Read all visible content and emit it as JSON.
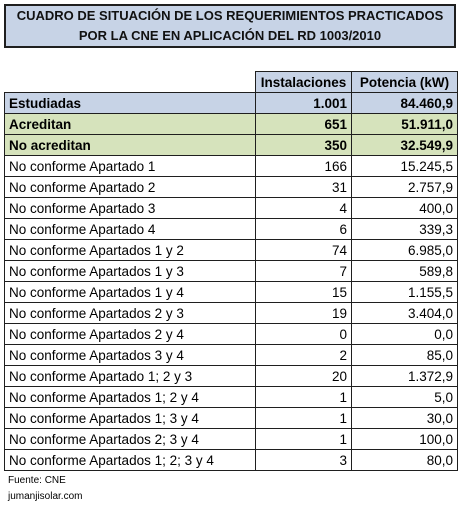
{
  "title": {
    "line1": "CUADRO DE SITUACIÓN DE LOS REQUERIMIENTOS PRACTICADOS",
    "line2": "POR LA CNE EN APLICACIÓN DEL RD 1003/2010"
  },
  "headers": {
    "col2": "Instalaciones",
    "col3": "Potencia (kW)"
  },
  "summary": [
    {
      "label": "Estudiadas",
      "inst": "1.001",
      "pot": "84.460,9"
    },
    {
      "label": "Acreditan",
      "inst": "651",
      "pot": "51.911,0"
    },
    {
      "label": "No acreditan",
      "inst": "350",
      "pot": "32.549,9"
    }
  ],
  "rows": [
    {
      "label": "No conforme Apartado 1",
      "inst": "166",
      "pot": "15.245,5"
    },
    {
      "label": "No conforme Apartado 2",
      "inst": "31",
      "pot": "2.757,9"
    },
    {
      "label": "No conforme Apartado 3",
      "inst": "4",
      "pot": "400,0"
    },
    {
      "label": "No conforme Apartado 4",
      "inst": "6",
      "pot": "339,3"
    },
    {
      "label": "No conforme Apartados 1 y 2",
      "inst": "74",
      "pot": "6.985,0"
    },
    {
      "label": "No conforme Apartados 1 y 3",
      "inst": "7",
      "pot": "589,8"
    },
    {
      "label": "No conforme Apartados 1 y 4",
      "inst": "15",
      "pot": "1.155,5"
    },
    {
      "label": "No conforme Apartados 2 y 3",
      "inst": "19",
      "pot": "3.404,0"
    },
    {
      "label": "No conforme Apartados 2 y 4",
      "inst": "0",
      "pot": "0,0"
    },
    {
      "label": "No conforme Apartados 3 y 4",
      "inst": "2",
      "pot": "85,0"
    },
    {
      "label": "No conforme Apartado 1; 2 y 3",
      "inst": "20",
      "pot": "1.372,9"
    },
    {
      "label": "No conforme Apartados 1; 2 y 4",
      "inst": "1",
      "pot": "5,0"
    },
    {
      "label": "No conforme Apartados 1; 3 y 4",
      "inst": "1",
      "pot": "30,0"
    },
    {
      "label": "No conforme Apartados 2; 3 y 4",
      "inst": "1",
      "pot": "100,0"
    },
    {
      "label": "No conforme Apartados 1; 2; 3 y 4",
      "inst": "3",
      "pot": "80,0"
    }
  ],
  "footer": {
    "source": "Fuente: CNE",
    "site": "jumanjisolar.com"
  }
}
